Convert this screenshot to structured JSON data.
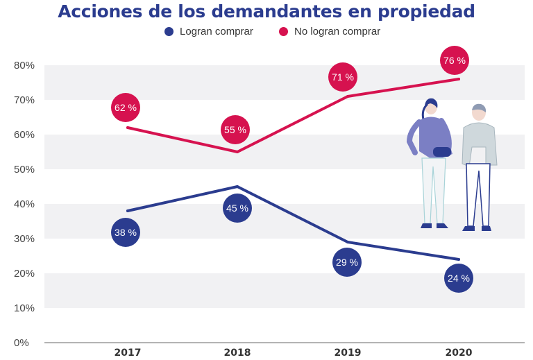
{
  "chart_data": {
    "type": "line",
    "title": "Acciones de los demandantes en propiedad",
    "categories": [
      "2017",
      "2018",
      "2019",
      "2020"
    ],
    "series": [
      {
        "name": "Logran comprar",
        "color": "#2b3c8f",
        "values": [
          38,
          45,
          29,
          24
        ],
        "labels": [
          "38 %",
          "45 %",
          "29 %",
          "24 %"
        ]
      },
      {
        "name": "No logran comprar",
        "color": "#d6124f",
        "values": [
          62,
          55,
          71,
          76
        ],
        "labels": [
          "62 %",
          "55 %",
          "71 %",
          "76 %"
        ]
      }
    ],
    "yticks": [
      "0%",
      "10%",
      "20%",
      "30%",
      "40%",
      "50%",
      "60%",
      "70%",
      "80%"
    ],
    "ylim": [
      0,
      80
    ],
    "grid": "alternating bands",
    "legend": "top-center"
  }
}
